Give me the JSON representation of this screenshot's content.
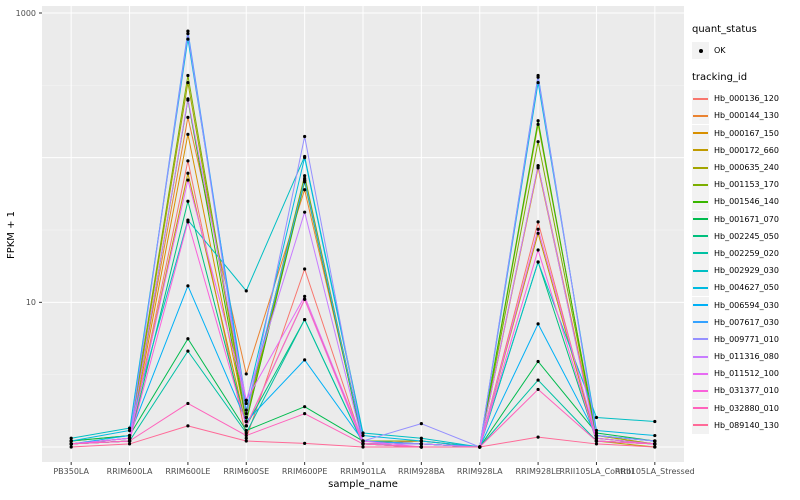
{
  "legend": {
    "quant_title": "quant_status",
    "quant_ok_label": "OK",
    "tracking_title": "tracking_id"
  },
  "chart_data": {
    "type": "line",
    "title": "",
    "xlabel": "sample_name",
    "ylabel": "FPKM + 1",
    "y_scale": "log10",
    "ylim": [
      0.79,
      1120
    ],
    "y_tick_values": [
      10,
      1000
    ],
    "y_tick_labels": [
      "10",
      "1000"
    ],
    "y_gridlines_major": [
      1,
      10,
      100,
      1000
    ],
    "y_gridlines_minor": [
      3.162,
      31.62,
      316.2
    ],
    "grid": true,
    "legend_position": "right",
    "point_shape": "filled-circle-black",
    "panel_background": "#EBEBEB",
    "gridline_color": "#FFFFFF",
    "tick_label_color": "#4D4D4D",
    "categories": [
      "PB350LA",
      "RRIM600LA",
      "RRIM600LE",
      "RRIM600SE",
      "RRIM600PE",
      "RRIM901LA",
      "RRIM928BA",
      "RRIM928LA",
      "RRIM928LE",
      "RRII105LA_Control",
      "RRII105LA_Stressed"
    ],
    "series": [
      {
        "name": "Hb_000136_120",
        "color": "#F8766D",
        "values": [
          1.05,
          1.1,
          95,
          1.15,
          17,
          1.05,
          1.1,
          1,
          36,
          1.1,
          1.05
        ]
      },
      {
        "name": "Hb_000144_130",
        "color": "#EA8331",
        "values": [
          1.05,
          1.15,
          190,
          3.2,
          60,
          1.1,
          1.05,
          1,
          88,
          1.2,
          1.05
        ]
      },
      {
        "name": "Hb_000167_150",
        "color": "#D89000",
        "values": [
          1.05,
          1.1,
          145,
          1.5,
          70,
          1.05,
          1,
          1,
          85,
          1.15,
          1.05
        ]
      },
      {
        "name": "Hb_000172_660",
        "color": "#C09B00",
        "values": [
          1.05,
          1.1,
          78,
          1.4,
          10.5,
          1.1,
          1.05,
          1,
          30,
          1.1,
          1
        ]
      },
      {
        "name": "Hb_000635_240",
        "color": "#A3A500",
        "values": [
          1.05,
          1.15,
          330,
          1.6,
          72,
          1.1,
          1.05,
          1,
          170,
          1.2,
          1.05
        ]
      },
      {
        "name": "Hb_001153_170",
        "color": "#7CAE00",
        "values": [
          1.1,
          1.2,
          370,
          1.7,
          75,
          1.1,
          1.1,
          1,
          129,
          1.2,
          1.1
        ]
      },
      {
        "name": "Hb_001546_140",
        "color": "#39B600",
        "values": [
          1.05,
          1.1,
          250,
          1.5,
          68,
          1.05,
          1,
          1,
          180,
          1.15,
          1.05
        ]
      },
      {
        "name": "Hb_001671_070",
        "color": "#00BB4E",
        "values": [
          1.1,
          1.2,
          5.6,
          1.3,
          1.9,
          1.1,
          1.05,
          1,
          3.9,
          1.25,
          1.1
        ]
      },
      {
        "name": "Hb_002245_050",
        "color": "#00BF7D",
        "values": [
          1.05,
          1.1,
          50,
          1.4,
          7.6,
          1.05,
          1.05,
          1,
          19,
          1.1,
          1.05
        ]
      },
      {
        "name": "Hb_002259_020",
        "color": "#00C1A3",
        "values": [
          1.05,
          1.1,
          4.6,
          1.25,
          7.6,
          1.05,
          1,
          1,
          2.9,
          1.1,
          1.05
        ]
      },
      {
        "name": "Hb_002929_030",
        "color": "#00BFC4",
        "values": [
          1.15,
          1.35,
          37,
          12,
          102,
          1.25,
          1.15,
          1,
          19,
          1.6,
          1.5
        ]
      },
      {
        "name": "Hb_004627_050",
        "color": "#00BAE0",
        "values": [
          1.1,
          1.3,
          660,
          2.0,
          100,
          1.2,
          1.1,
          1,
          330,
          1.3,
          1.2
        ]
      },
      {
        "name": "Hb_006594_030",
        "color": "#00B0F6",
        "values": [
          1.05,
          1.2,
          13,
          1.5,
          4.0,
          1.1,
          1.05,
          1,
          7.1,
          1.2,
          1.1
        ]
      },
      {
        "name": "Hb_007617_030",
        "color": "#35A2FF",
        "values": [
          1.05,
          1.15,
          750,
          1.8,
          70,
          1.1,
          1.05,
          1,
          370,
          1.2,
          1.1
        ]
      },
      {
        "name": "Hb_009771_010",
        "color": "#9590FF",
        "values": [
          1.05,
          1.15,
          720,
          1.6,
          140,
          1.1,
          1.45,
          1,
          360,
          1.2,
          1.1
        ]
      },
      {
        "name": "Hb_011316_080",
        "color": "#C77CFF",
        "values": [
          1.05,
          1.1,
          255,
          2.1,
          42,
          1.05,
          1.05,
          1,
          88,
          1.1,
          1.05
        ]
      },
      {
        "name": "Hb_011512_100",
        "color": "#E76BF3",
        "values": [
          1.05,
          1.15,
          70,
          2.1,
          11,
          1.1,
          1,
          1,
          32,
          1.15,
          1.05
        ]
      },
      {
        "name": "Hb_031377_010",
        "color": "#FA62DB",
        "values": [
          1.05,
          1.1,
          36,
          1.4,
          10.5,
          1.05,
          1,
          1,
          23,
          1.1,
          1.05
        ]
      },
      {
        "name": "Hb_032880_010",
        "color": "#FF62BC",
        "values": [
          1.05,
          1.1,
          2.0,
          1.2,
          1.7,
          1.05,
          1,
          1,
          2.5,
          1.1,
          1.05
        ]
      },
      {
        "name": "Hb_089140_130",
        "color": "#FF6A98",
        "values": [
          1,
          1.05,
          1.4,
          1.1,
          1.06,
          1,
          1,
          1,
          1.17,
          1.05,
          1
        ]
      }
    ]
  }
}
